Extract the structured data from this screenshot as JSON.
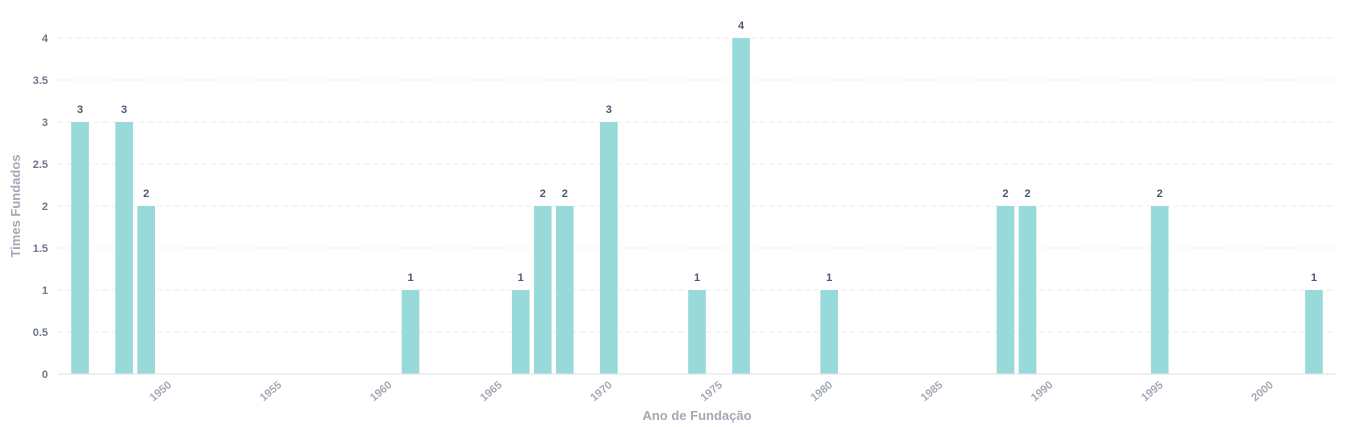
{
  "chart_data": {
    "type": "bar",
    "x_axis_label": "Ano de Fundação",
    "y_axis_label": "Times Fundados",
    "x_range": [
      1945,
      2003
    ],
    "y_range": [
      0,
      4
    ],
    "y_ticks": [
      "0",
      "0.5",
      "1",
      "1.5",
      "2",
      "2.5",
      "3",
      "3.5",
      "4"
    ],
    "x_ticks": [
      "1950",
      "1955",
      "1960",
      "1965",
      "1970",
      "1975",
      "1980",
      "1985",
      "1990",
      "1995",
      "2000"
    ],
    "grid": true,
    "bar_color": "#98d9d9",
    "series": [
      {
        "x": [
          1946,
          1948,
          1949,
          1961,
          1966,
          1967,
          1968,
          1970,
          1974,
          1976,
          1980,
          1988,
          1989,
          1995,
          2002
        ],
        "values": [
          3,
          3,
          2,
          1,
          1,
          2,
          2,
          3,
          1,
          4,
          1,
          2,
          2,
          2,
          1
        ]
      }
    ]
  }
}
